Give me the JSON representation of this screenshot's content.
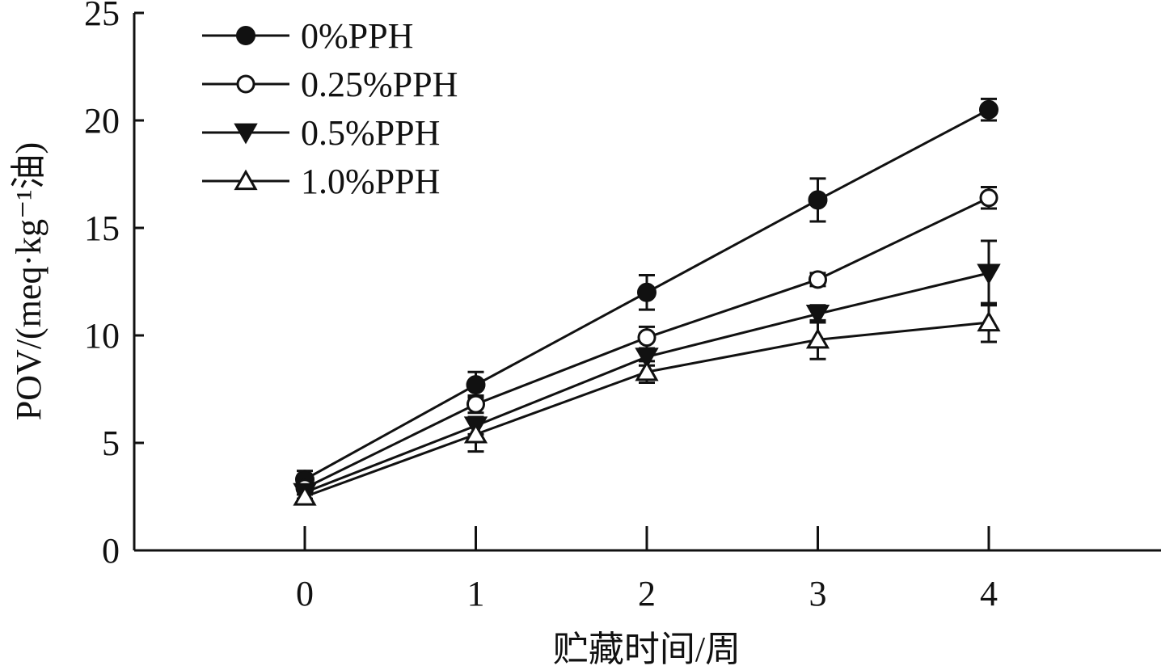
{
  "chart_data": {
    "type": "line",
    "xlabel": "贮藏时间/周",
    "ylabel": "POV/(meq·kg⁻¹油)",
    "x": [
      0,
      1,
      2,
      3,
      4
    ],
    "x_tick_labels": [
      "0",
      "1",
      "2",
      "3",
      "4"
    ],
    "xlim": [
      -1,
      5
    ],
    "ylim": [
      0,
      25
    ],
    "y_ticks": [
      0,
      5,
      10,
      15,
      20,
      25
    ],
    "y_tick_labels": [
      "0",
      "5",
      "10",
      "15",
      "20",
      "25"
    ],
    "grid": false,
    "legend_position": "top-left",
    "series": [
      {
        "name": "0%PPH",
        "marker": "filled-circle",
        "color": "#111111",
        "values": [
          3.3,
          7.7,
          12.0,
          16.3,
          20.5
        ],
        "errors": [
          0.4,
          0.6,
          0.8,
          1.0,
          0.5
        ]
      },
      {
        "name": "0.25%PPH",
        "marker": "open-circle",
        "color": "#111111",
        "values": [
          2.9,
          6.8,
          9.9,
          12.6,
          16.4
        ],
        "errors": [
          0.3,
          0.4,
          0.5,
          0.3,
          0.5
        ]
      },
      {
        "name": "0.5%PPH",
        "marker": "filled-triangle-down",
        "color": "#111111",
        "values": [
          2.7,
          5.8,
          9.0,
          11.0,
          12.9
        ],
        "errors": [
          0.3,
          0.4,
          0.4,
          0.4,
          1.5
        ]
      },
      {
        "name": "1.0%PPH",
        "marker": "open-triangle-up",
        "color": "#111111",
        "values": [
          2.5,
          5.4,
          8.3,
          9.8,
          10.6
        ],
        "errors": [
          0.3,
          0.8,
          0.5,
          0.9,
          0.9
        ]
      }
    ]
  }
}
